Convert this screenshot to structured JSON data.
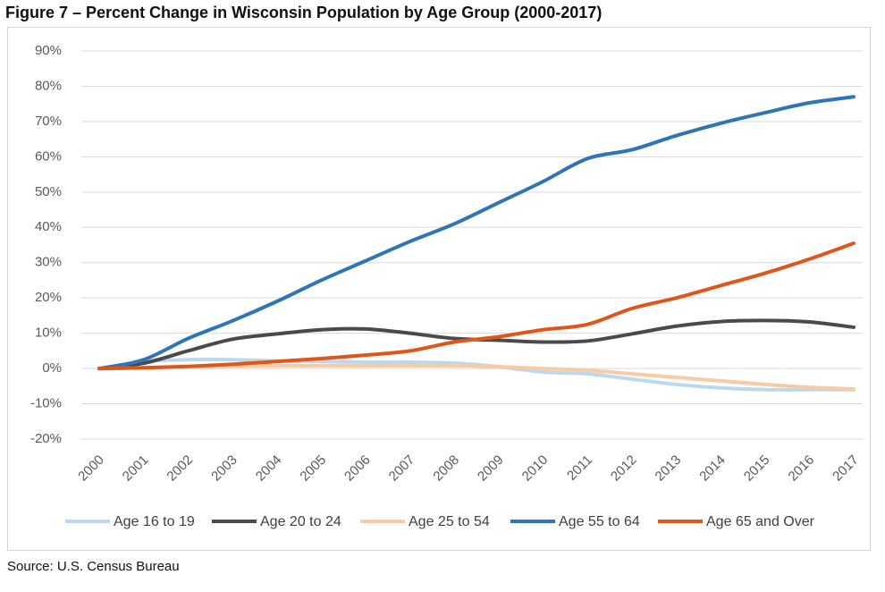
{
  "figure": {
    "title": "Figure 7 – Percent Change in Wisconsin Population by Age Group (2000-2017)",
    "source": "Source: U.S. Census Bureau"
  },
  "chart_data": {
    "type": "line",
    "x": [
      "2000",
      "2001",
      "2002",
      "2003",
      "2004",
      "2005",
      "2006",
      "2007",
      "2008",
      "2009",
      "2010",
      "2011",
      "2012",
      "2013",
      "2014",
      "2015",
      "2016",
      "2017"
    ],
    "y_ticks": [
      "90%",
      "80%",
      "70%",
      "60%",
      "50%",
      "40%",
      "30%",
      "20%",
      "10%",
      "0%",
      "-10%",
      "-20%"
    ],
    "ylim": [
      -20,
      90
    ],
    "y_unit": "%",
    "grid": true,
    "legend_position": "bottom",
    "series": [
      {
        "name": "Age 16 to 19",
        "color": "#bdd7ee",
        "values": [
          0,
          2,
          2.5,
          2.5,
          2.2,
          2,
          1.8,
          1.8,
          1.5,
          0.5,
          -1,
          -1.5,
          -3,
          -4.5,
          -5.5,
          -6,
          -6,
          -6
        ]
      },
      {
        "name": "Age 20 to 24",
        "color": "#4a4a4a",
        "values": [
          0,
          1.5,
          5,
          8.3,
          9.8,
          11,
          11.2,
          10,
          8.5,
          8,
          7.5,
          7.8,
          9.8,
          12,
          13.3,
          13.6,
          13.2,
          11.7
        ]
      },
      {
        "name": "Age 25 to 54",
        "color": "#f8cba4",
        "values": [
          0,
          0.2,
          0.5,
          0.7,
          0.8,
          0.8,
          0.8,
          0.8,
          0.8,
          0.5,
          0,
          -0.5,
          -1.5,
          -2.5,
          -3.5,
          -4.5,
          -5.3,
          -5.8
        ]
      },
      {
        "name": "Age 55 to 64",
        "color": "#2e75b6",
        "values": [
          0,
          2.5,
          8.5,
          13.5,
          19,
          25,
          30.5,
          36,
          41,
          47,
          53,
          59.5,
          62,
          66,
          69.5,
          72.5,
          75.3,
          77
        ]
      },
      {
        "name": "Age 65 and Over",
        "color": "#e0561a",
        "values": [
          0,
          0.2,
          0.6,
          1.2,
          2,
          2.8,
          3.8,
          5,
          7.5,
          9,
          11,
          12.5,
          17,
          20,
          23.5,
          27,
          31,
          35.5
        ]
      }
    ]
  }
}
